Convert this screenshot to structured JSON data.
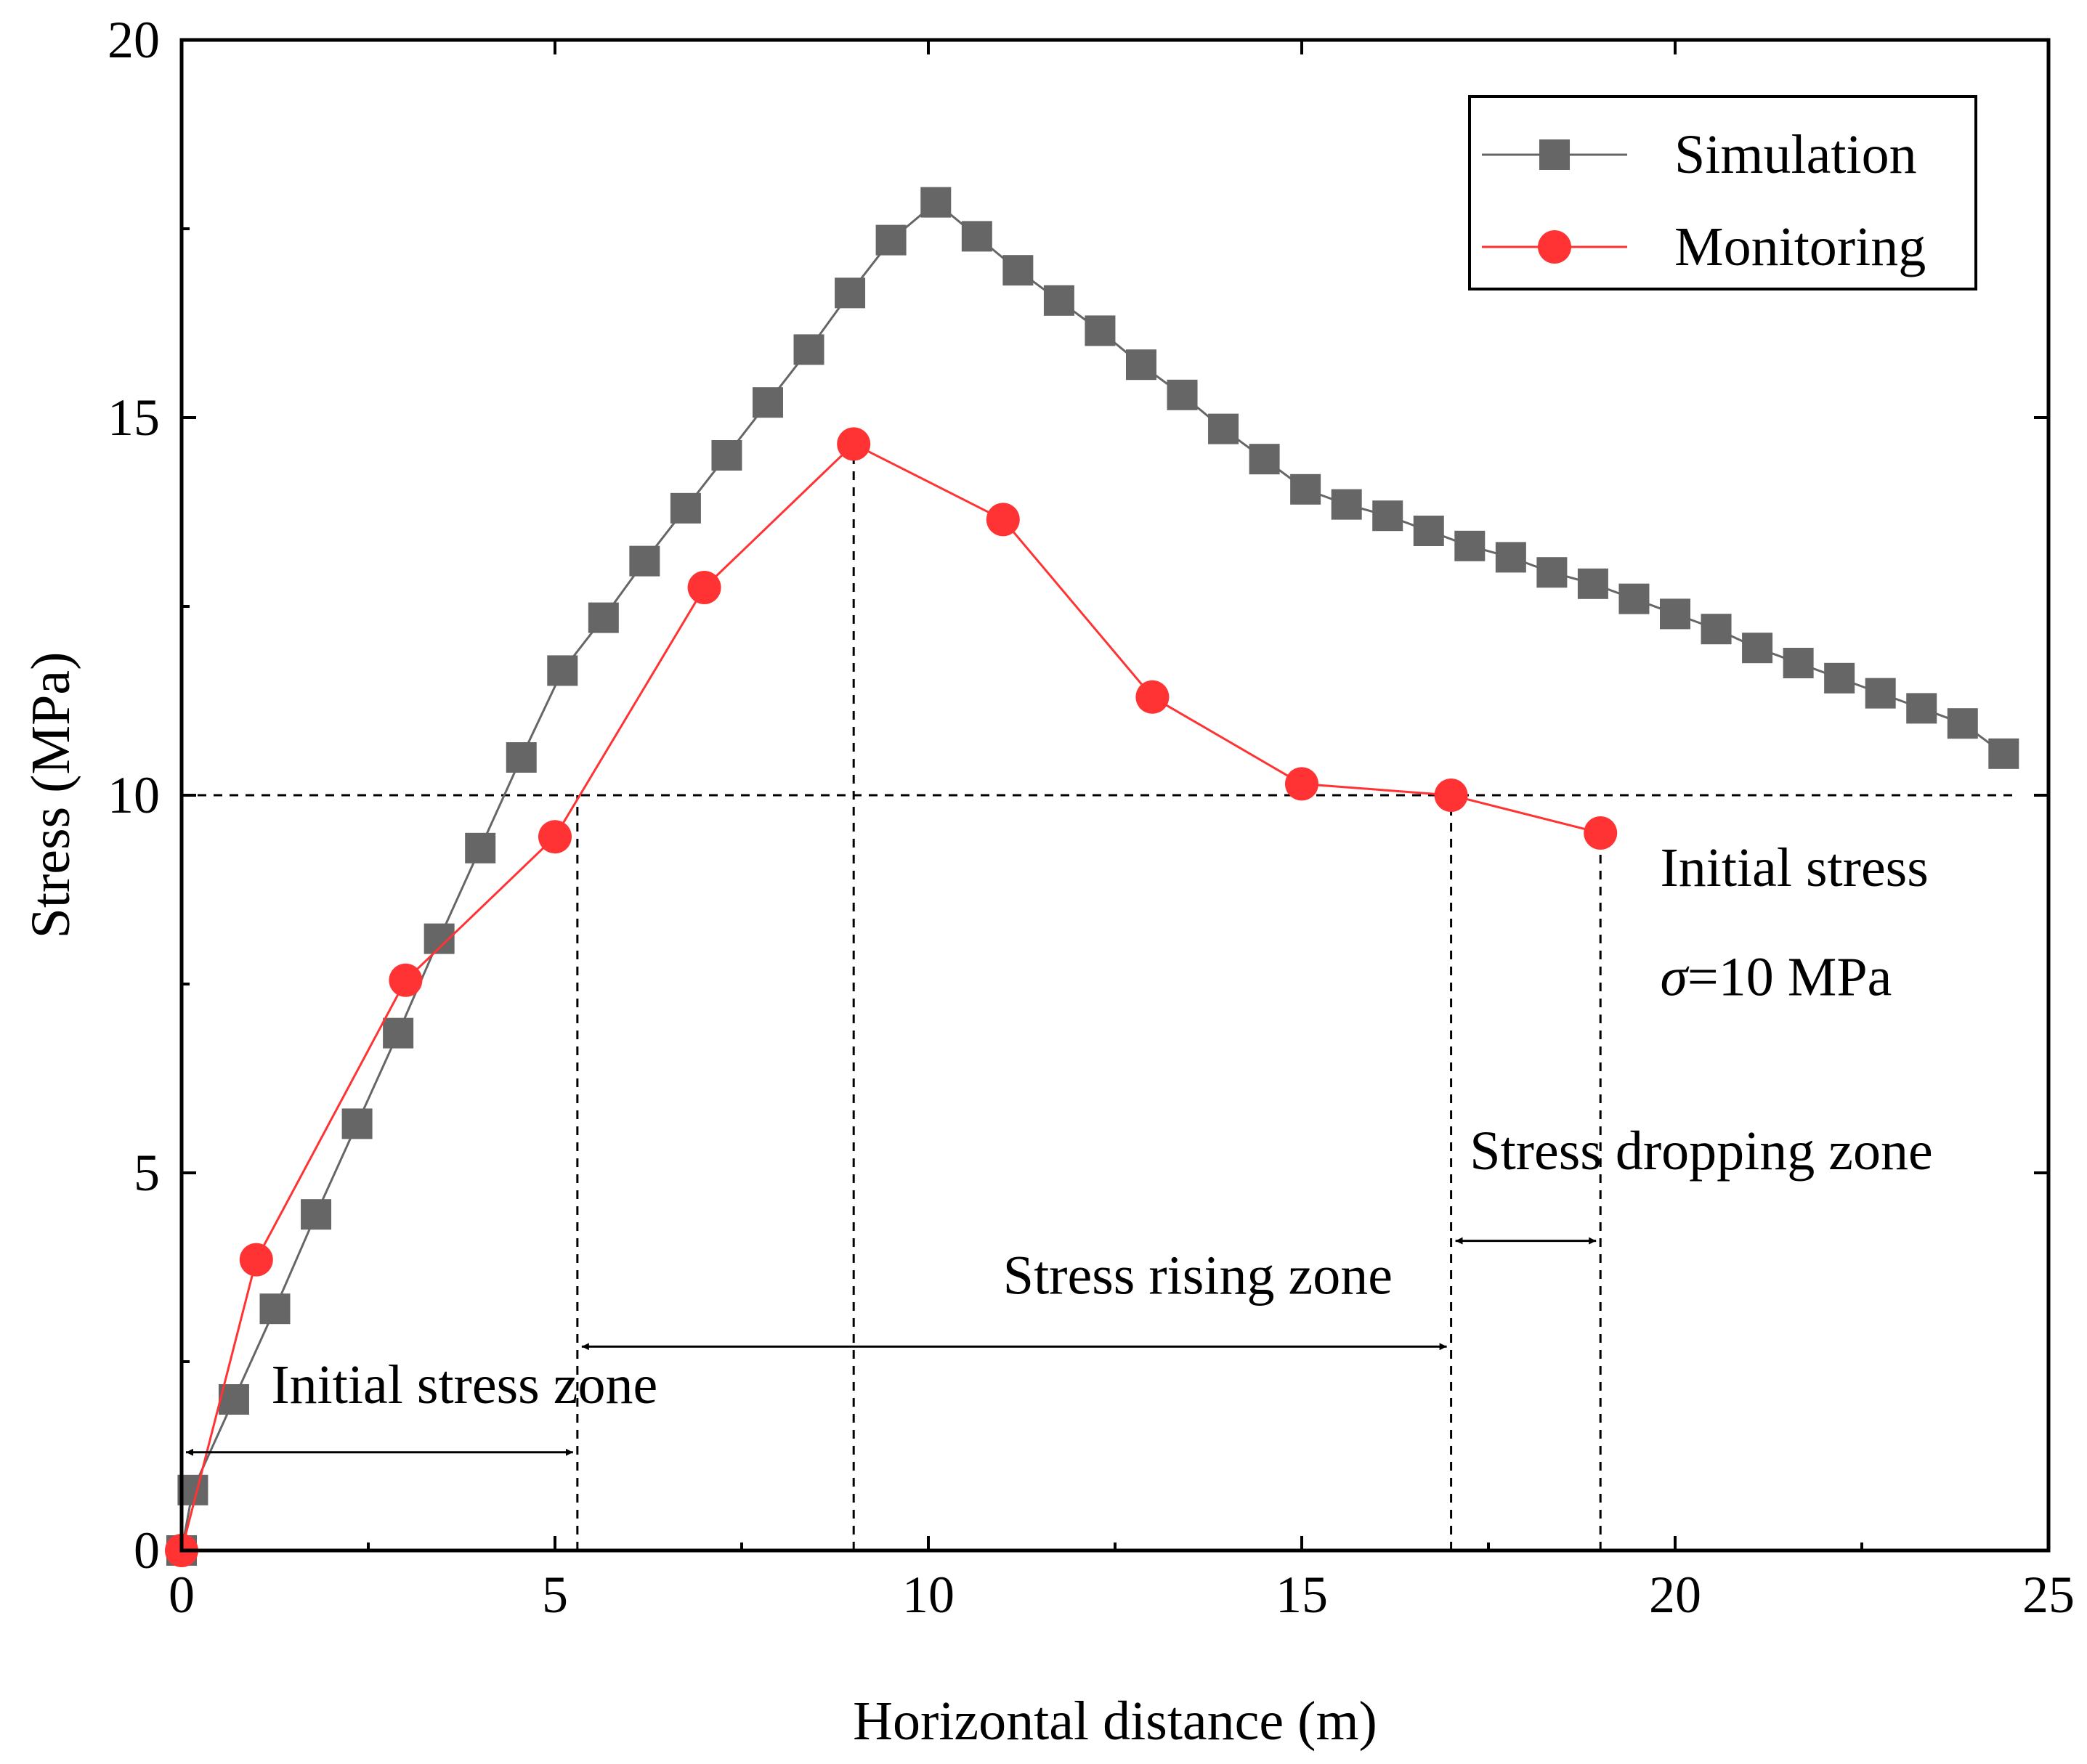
{
  "chart_data": {
    "type": "line",
    "xlabel": "Horizontal distance (m)",
    "ylabel": "Stress (MPa)",
    "xlim": [
      0,
      25
    ],
    "ylim": [
      0,
      20
    ],
    "x_ticks": [
      "0",
      "5",
      "10",
      "15",
      "20",
      "25"
    ],
    "y_ticks": [
      "0",
      "5",
      "10",
      "15",
      "20"
    ],
    "grid": false,
    "legend_position": "top-right",
    "series": [
      {
        "name": "Simulation",
        "marker": "square",
        "color": "#666666",
        "x": [
          0.0,
          0.15,
          0.7,
          1.25,
          1.8,
          2.35,
          2.9,
          3.45,
          4.0,
          4.55,
          5.1,
          5.65,
          6.2,
          6.75,
          7.3,
          7.85,
          8.4,
          8.95,
          9.5,
          10.1,
          10.65,
          11.2,
          11.75,
          12.3,
          12.85,
          13.4,
          13.95,
          14.5,
          15.05,
          15.6,
          16.15,
          16.7,
          17.25,
          17.8,
          18.35,
          18.9,
          19.45,
          20.0,
          20.55,
          21.1,
          21.65,
          22.2,
          22.75,
          23.3,
          23.85,
          24.4
        ],
        "values": [
          0.0,
          0.8,
          2.0,
          3.2,
          4.45,
          5.65,
          6.85,
          8.1,
          9.3,
          10.5,
          11.65,
          12.35,
          13.1,
          13.8,
          14.5,
          15.2,
          15.9,
          16.65,
          17.35,
          17.85,
          17.4,
          16.95,
          16.55,
          16.15,
          15.7,
          15.3,
          14.85,
          14.45,
          14.05,
          13.85,
          13.7,
          13.5,
          13.3,
          13.15,
          12.95,
          12.8,
          12.6,
          12.4,
          12.2,
          11.95,
          11.75,
          11.55,
          11.35,
          11.15,
          10.95,
          10.55
        ]
      },
      {
        "name": "Monitoring",
        "marker": "circle",
        "color": "#ff3333",
        "x": [
          0,
          1,
          3,
          5,
          7,
          9,
          11,
          13,
          15,
          17,
          19
        ],
        "values": [
          0.0,
          3.85,
          7.55,
          9.45,
          12.75,
          14.65,
          13.65,
          11.3,
          10.15,
          10.0,
          9.5
        ]
      }
    ],
    "reference_lines": {
      "horizontal": {
        "y": 10,
        "x_range": [
          0,
          24.6
        ]
      },
      "vertical": [
        {
          "x": 5.3,
          "y_top": 10.0
        },
        {
          "x": 9.0,
          "y_top": 14.65
        },
        {
          "x": 17.0,
          "y_top": 10.0
        },
        {
          "x": 19.0,
          "y_top": 9.5
        }
      ]
    },
    "zone_arrows": [
      {
        "label": "Initial stress zone",
        "x_from": 0.0,
        "x_to": 5.3,
        "y": 1.3,
        "label_x": 1.2,
        "label_y": 1.95
      },
      {
        "label": "Stress rising zone",
        "x_from": 5.3,
        "x_to": 17.0,
        "y": 2.7,
        "label_x": 11.0,
        "label_y": 3.4
      },
      {
        "label": "Stress dropping zone",
        "x_from": 17.0,
        "x_to": 19.0,
        "y": 4.1,
        "label_x": 17.25,
        "label_y": 5.05
      }
    ],
    "annotations": [
      {
        "text": "Initial stress",
        "x": 19.8,
        "y": 8.8
      },
      {
        "text": "σ=10 MPa",
        "x": 19.8,
        "y": 7.35
      }
    ]
  }
}
